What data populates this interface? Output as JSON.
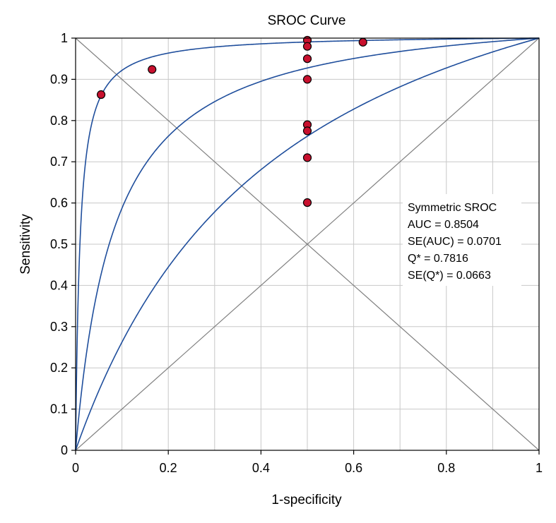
{
  "chart_data": {
    "type": "scatter",
    "title": "SROC Curve",
    "xlabel": "1-specificity",
    "ylabel": "Sensitivity",
    "xlim": [
      0,
      1
    ],
    "ylim": [
      0,
      1
    ],
    "grid": true,
    "x_ticks": [
      "0",
      "0.2",
      "0.4",
      "0.6",
      "0.8",
      "1"
    ],
    "x_tick_values": [
      0,
      0.2,
      0.4,
      0.6,
      0.8,
      1
    ],
    "y_ticks": [
      "0",
      "0.1",
      "0.2",
      "0.3",
      "0.4",
      "0.5",
      "0.6",
      "0.7",
      "0.8",
      "0.9",
      "1"
    ],
    "y_tick_values": [
      0,
      0.1,
      0.2,
      0.3,
      0.4,
      0.5,
      0.6,
      0.7,
      0.8,
      0.9,
      1
    ],
    "points": [
      {
        "x": 0.055,
        "y": 0.863
      },
      {
        "x": 0.165,
        "y": 0.924
      },
      {
        "x": 0.5,
        "y": 0.995
      },
      {
        "x": 0.5,
        "y": 0.98
      },
      {
        "x": 0.5,
        "y": 0.95
      },
      {
        "x": 0.5,
        "y": 0.9
      },
      {
        "x": 0.5,
        "y": 0.79
      },
      {
        "x": 0.5,
        "y": 0.775
      },
      {
        "x": 0.5,
        "y": 0.71
      },
      {
        "x": 0.5,
        "y": 0.601
      },
      {
        "x": 0.62,
        "y": 0.99
      }
    ],
    "curves": [
      {
        "odds_ratio": 106
      },
      {
        "odds_ratio": 12.8
      },
      {
        "odds_ratio": 3.2
      }
    ],
    "diagonals": [
      "chance-line",
      "Q-point-line"
    ],
    "annotation": {
      "lines": [
        "Symmetric SROC",
        "AUC = 0.8504",
        "SE(AUC) = 0.0701",
        "Q* = 0.7816",
        "SE(Q*) = 0.0663"
      ],
      "placement": "right-middle"
    },
    "colors": {
      "curve": "#1f4e9c",
      "point_fill": "#c8102e",
      "diagonal": "#7f7f7f",
      "grid": "#c8c8c8"
    }
  }
}
